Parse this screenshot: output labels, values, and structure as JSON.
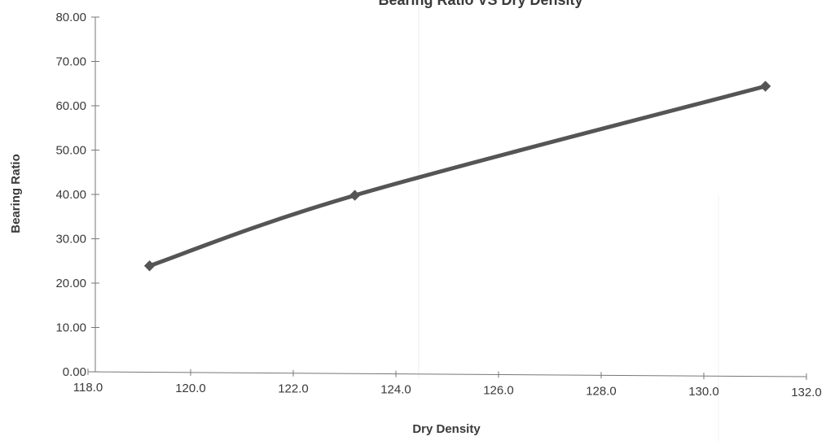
{
  "chart_data": {
    "type": "line",
    "title": "Bearing Ratio VS Dry Density",
    "xlabel": "Dry Density",
    "ylabel": "Bearing Ratio",
    "xlim": [
      118.0,
      132.0
    ],
    "ylim": [
      0.0,
      80.0
    ],
    "x_ticks": [
      "118.0",
      "120.0",
      "122.0",
      "124.0",
      "126.0",
      "128.0",
      "130.0",
      "132.0"
    ],
    "y_ticks": [
      "0.00",
      "10.00",
      "20.00",
      "30.00",
      "40.00",
      "50.00",
      "60.00",
      "70.00",
      "80.00"
    ],
    "grid": false,
    "smooth": true,
    "marker": "diamond",
    "series": [
      {
        "x": [
          119.2,
          123.2,
          131.2
        ],
        "y": [
          23.9,
          39.8,
          64.4
        ],
        "color": "#555555"
      }
    ]
  }
}
